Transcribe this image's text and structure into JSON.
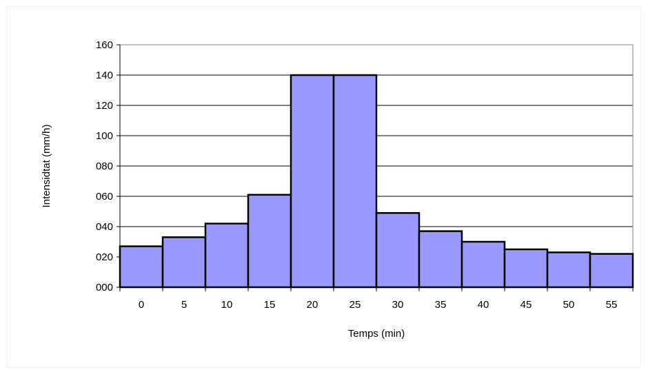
{
  "chart_data": {
    "type": "bar",
    "title": "",
    "xlabel": "Temps (min)",
    "ylabel": "Intensidtat (mm/h)",
    "categories": [
      "0",
      "5",
      "10",
      "15",
      "20",
      "25",
      "30",
      "35",
      "40",
      "45",
      "50",
      "55"
    ],
    "values": [
      27,
      33,
      42,
      61,
      140,
      140,
      49,
      37,
      30,
      25,
      23,
      22
    ],
    "ylim": [
      0,
      160
    ],
    "yticks": [
      "000",
      "020",
      "040",
      "060",
      "080",
      "100",
      "120",
      "140",
      "160"
    ],
    "grid": "horizontal",
    "legend": "none",
    "bar_color": "#9999ff",
    "bar_edge_color": "#000000"
  }
}
